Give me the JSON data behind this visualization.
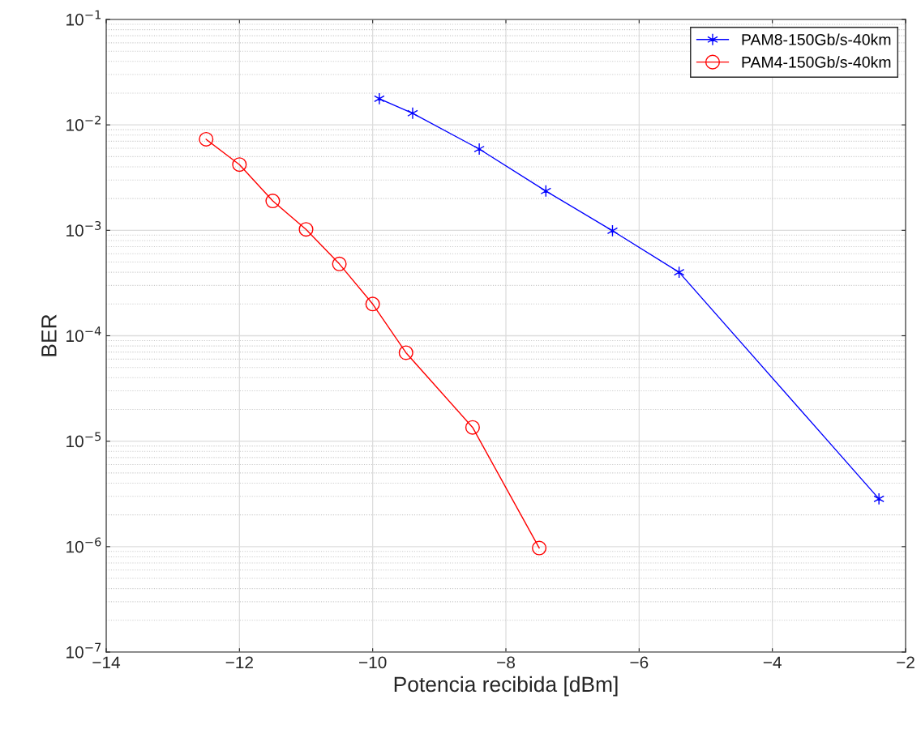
{
  "chart_data": {
    "type": "line",
    "xlabel": "Potencia recibida [dBm]",
    "ylabel": "BER",
    "log": "y",
    "grid": true,
    "legend": "top right",
    "xlim": [
      -14,
      -2
    ],
    "xticks": [
      -14,
      -12,
      -10,
      -8,
      -6,
      -4,
      -2
    ],
    "ylim": [
      1e-07,
      0.1
    ],
    "yticks": [
      {
        "value": 1e-07,
        "label": "10$^{−7}$"
      },
      {
        "value": 1e-06,
        "label": "10$^{−6}$"
      },
      {
        "value": 1e-05,
        "label": "10$^{−5}$"
      },
      {
        "value": 0.0001,
        "label": "10$^{−4}$"
      },
      {
        "value": 0.001,
        "label": "10$^{−3}$"
      },
      {
        "value": 0.01,
        "label": "10$^{−2}$"
      },
      {
        "value": 0.1,
        "label": "10$^{−1}$"
      }
    ],
    "series": [
      {
        "name": "PAM8-150Gb/s-40km",
        "color": "#0000ff",
        "marker": "cross",
        "x": [
          -9.9,
          -9.4,
          -8.4,
          -7.4,
          -6.4,
          -5.4,
          -2.4
        ],
        "values": [
          0.0177,
          0.0129,
          0.0059,
          0.00236,
          0.00099,
          0.0004,
          2.84e-06
        ]
      },
      {
        "name": "PAM4-150Gb/s-40km",
        "color": "#ff0000",
        "marker": "circle",
        "x": [
          -12.5,
          -12,
          -11.5,
          -11,
          -10.5,
          -10,
          -9.5,
          -8.5,
          -7.5
        ],
        "values": [
          0.0073,
          0.0042,
          0.0019,
          0.00102,
          0.00048,
          0.0002,
          6.9e-05,
          1.35e-05,
          9.7e-07
        ]
      }
    ]
  }
}
